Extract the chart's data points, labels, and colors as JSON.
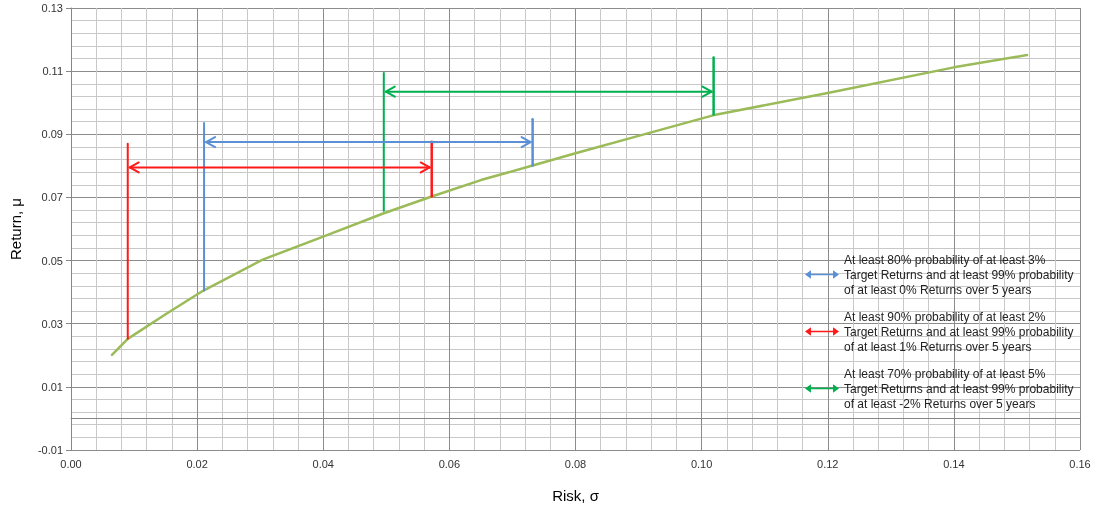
{
  "chart_data": {
    "type": "line",
    "xlabel": "Risk, σ",
    "ylabel": "Return, μ",
    "xlim": [
      0,
      0.16
    ],
    "xticks": [
      {
        "value": 0,
        "label": "0.00"
      },
      0.02,
      0.04,
      0.06,
      0.08,
      {
        "value": 0.1,
        "label": "0.10"
      },
      0.12,
      0.14,
      0.16
    ],
    "ylim": [
      -0.01,
      0.13
    ],
    "yticks": [
      -0.01,
      0.01,
      0.03,
      0.05,
      0.07,
      0.09,
      0.11,
      0.13
    ],
    "grid": true,
    "legend": "bottom right",
    "marker": "none",
    "line_style": "solid",
    "series": [
      {
        "color": "#9bbb59",
        "x": [
          0.0065,
          0.009,
          0.015,
          0.021,
          0.0304,
          0.0403,
          0.0495,
          0.0572,
          0.065,
          0.0732,
          0.08,
          0.09,
          0.1018,
          0.12,
          0.14,
          0.1516
        ],
        "values": [
          0.0201,
          0.0252,
          0.033,
          0.0405,
          0.0503,
          0.0578,
          0.0649,
          0.0703,
          0.0755,
          0.0801,
          0.084,
          0.0895,
          0.096,
          0.1031,
          0.1112,
          0.1151
        ]
      },
      {
        "name": "At least 80% probability of at least 3% Target Returns and at least 99% probability of at least 0% Returns over 5 years",
        "color": "#5b8fd6",
        "x": [
          0.0211,
          0.0211
        ],
        "values": [
          0.0936,
          0.0405
        ]
      },
      {
        "color": "#5b8fd6",
        "x": [
          0.0732,
          0.0732
        ],
        "values": [
          0.0948,
          0.0801
        ]
      },
      {
        "name": "At least 90% probability of at least 2% Target Returns and at least 99% probability of at least 1% Returns over 5 years",
        "color": "#ff1a1a",
        "x": [
          0.009,
          0.009
        ],
        "values": [
          0.087,
          0.0252
        ]
      },
      {
        "color": "#ff1a1a",
        "x": [
          0.0572,
          0.0572
        ],
        "values": [
          0.0876,
          0.0703
        ]
      },
      {
        "name": "At least 70% probability of at least 5% Target Returns and at least 99% probability of at least -2% Returns over 5 years",
        "color": "#00b050",
        "x": [
          0.0496,
          0.0496
        ],
        "values": [
          0.1094,
          0.0658
        ]
      },
      {
        "color": "#00b050",
        "x": [
          0.1019,
          0.1019
        ],
        "values": [
          0.1143,
          0.0963
        ]
      }
    ]
  }
}
